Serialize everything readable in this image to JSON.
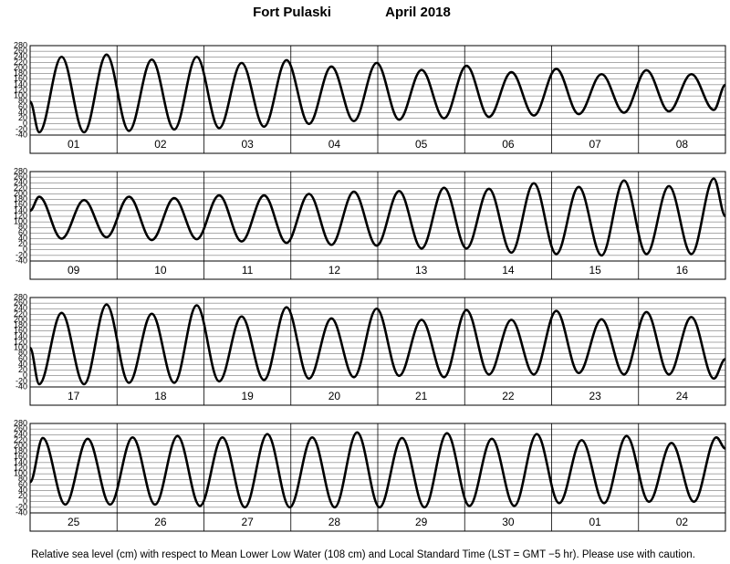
{
  "title": "Fort Pulaski",
  "subtitle": "April 2018",
  "note": "Relative sea level (cm) with respect to Mean Lower Low Water (108 cm) and Local Standard Time (LST = GMT −5 hr). Please use with caution.",
  "chart_data": [
    {
      "type": "line",
      "categories": [
        "01",
        "02",
        "03",
        "04",
        "05",
        "06",
        "07",
        "08"
      ],
      "x": [
        0,
        2.5,
        8.7,
        14.9,
        21.1,
        27.3,
        33.6,
        39.8,
        46.0,
        52.2,
        58.4,
        64.6,
        70.8,
        77.0,
        83.2,
        89.4,
        95.7,
        101.9,
        108.1,
        114.3,
        120.5,
        126.7,
        132.9,
        139.1,
        145.3,
        151.5,
        157.8,
        164.0,
        170.2,
        176.4,
        182.6,
        188.8,
        192
      ],
      "values": [
        80,
        -30,
        240,
        -30,
        248,
        -25,
        230,
        -20,
        240,
        -15,
        218,
        -10,
        228,
        0,
        205,
        10,
        218,
        15,
        193,
        20,
        208,
        25,
        185,
        30,
        197,
        35,
        178,
        40,
        192,
        45,
        178,
        50,
        140
      ],
      "color": "#000000",
      "xlim": [
        0,
        192
      ],
      "xticks": [
        24,
        48,
        72,
        96,
        120,
        144,
        168
      ],
      "ylim": [
        -40,
        280
      ],
      "yticks": [
        -40,
        -20,
        0,
        20,
        40,
        60,
        80,
        100,
        120,
        140,
        160,
        180,
        200,
        220,
        240,
        260,
        280
      ],
      "grid": true
    },
    {
      "type": "line",
      "categories": [
        "09",
        "10",
        "11",
        "12",
        "13",
        "14",
        "15",
        "16"
      ],
      "x": [
        0,
        2.5,
        8.7,
        14.9,
        21.1,
        27.3,
        33.6,
        39.8,
        46.0,
        52.2,
        58.4,
        64.6,
        70.8,
        77.0,
        83.2,
        89.4,
        95.7,
        101.9,
        108.1,
        114.3,
        120.5,
        126.7,
        132.9,
        139.1,
        145.3,
        151.5,
        157.8,
        164.0,
        170.2,
        176.4,
        182.6,
        188.8,
        192
      ],
      "values": [
        140,
        190,
        40,
        178,
        45,
        190,
        35,
        185,
        38,
        195,
        30,
        195,
        25,
        200,
        18,
        208,
        15,
        210,
        5,
        222,
        5,
        218,
        -10,
        238,
        -15,
        225,
        -20,
        248,
        -15,
        228,
        -15,
        255,
        120
      ],
      "color": "#000000",
      "xlim": [
        0,
        192
      ],
      "xticks": [
        24,
        48,
        72,
        96,
        120,
        144,
        168
      ],
      "ylim": [
        -40,
        280
      ],
      "yticks": [
        -40,
        -20,
        0,
        20,
        40,
        60,
        80,
        100,
        120,
        140,
        160,
        180,
        200,
        220,
        240,
        260,
        280
      ],
      "grid": true
    },
    {
      "type": "line",
      "categories": [
        "17",
        "18",
        "19",
        "20",
        "21",
        "22",
        "23",
        "24"
      ],
      "x": [
        0,
        2.5,
        8.7,
        14.9,
        21.1,
        27.3,
        33.6,
        39.8,
        46.0,
        52.2,
        58.4,
        64.6,
        70.8,
        77.0,
        83.2,
        89.4,
        95.7,
        101.9,
        108.1,
        114.3,
        120.5,
        126.7,
        132.9,
        139.1,
        145.3,
        151.5,
        157.8,
        164.0,
        170.2,
        176.4,
        182.6,
        188.8,
        192
      ],
      "values": [
        100,
        -30,
        225,
        -30,
        255,
        -25,
        222,
        -25,
        252,
        -20,
        212,
        -15,
        245,
        -10,
        205,
        -5,
        240,
        0,
        200,
        -5,
        235,
        5,
        200,
        5,
        232,
        10,
        202,
        5,
        228,
        5,
        210,
        -10,
        60
      ],
      "color": "#000000",
      "xlim": [
        0,
        192
      ],
      "xticks": [
        24,
        48,
        72,
        96,
        120,
        144,
        168
      ],
      "ylim": [
        -40,
        280
      ],
      "yticks": [
        -40,
        -20,
        0,
        20,
        40,
        60,
        80,
        100,
        120,
        140,
        160,
        180,
        200,
        220,
        240,
        260,
        280
      ],
      "grid": true
    },
    {
      "type": "line",
      "categories": [
        "25",
        "26",
        "27",
        "28",
        "29",
        "30",
        "01",
        "02"
      ],
      "x": [
        0,
        3.5,
        9.7,
        15.9,
        22.1,
        28.3,
        34.5,
        40.7,
        46.9,
        53.1,
        59.3,
        65.5,
        71.7,
        77.9,
        84.1,
        90.3,
        96.5,
        102.7,
        108.9,
        115.1,
        121.3,
        127.5,
        133.7,
        139.9,
        146.1,
        152.3,
        158.5,
        164.7,
        170.9,
        177.1,
        183.3,
        189.5,
        192
      ],
      "values": [
        70,
        228,
        -10,
        225,
        -10,
        230,
        -10,
        235,
        -15,
        230,
        -20,
        242,
        -20,
        230,
        -20,
        248,
        -20,
        228,
        -20,
        245,
        -15,
        225,
        -15,
        242,
        -5,
        220,
        -5,
        235,
        0,
        210,
        0,
        230,
        190
      ],
      "color": "#000000",
      "xlim": [
        0,
        192
      ],
      "xticks": [
        24,
        48,
        72,
        96,
        120,
        144,
        168
      ],
      "ylim": [
        -40,
        280
      ],
      "yticks": [
        -40,
        -20,
        0,
        20,
        40,
        60,
        80,
        100,
        120,
        140,
        160,
        180,
        200,
        220,
        240,
        260,
        280
      ],
      "grid": true
    }
  ]
}
